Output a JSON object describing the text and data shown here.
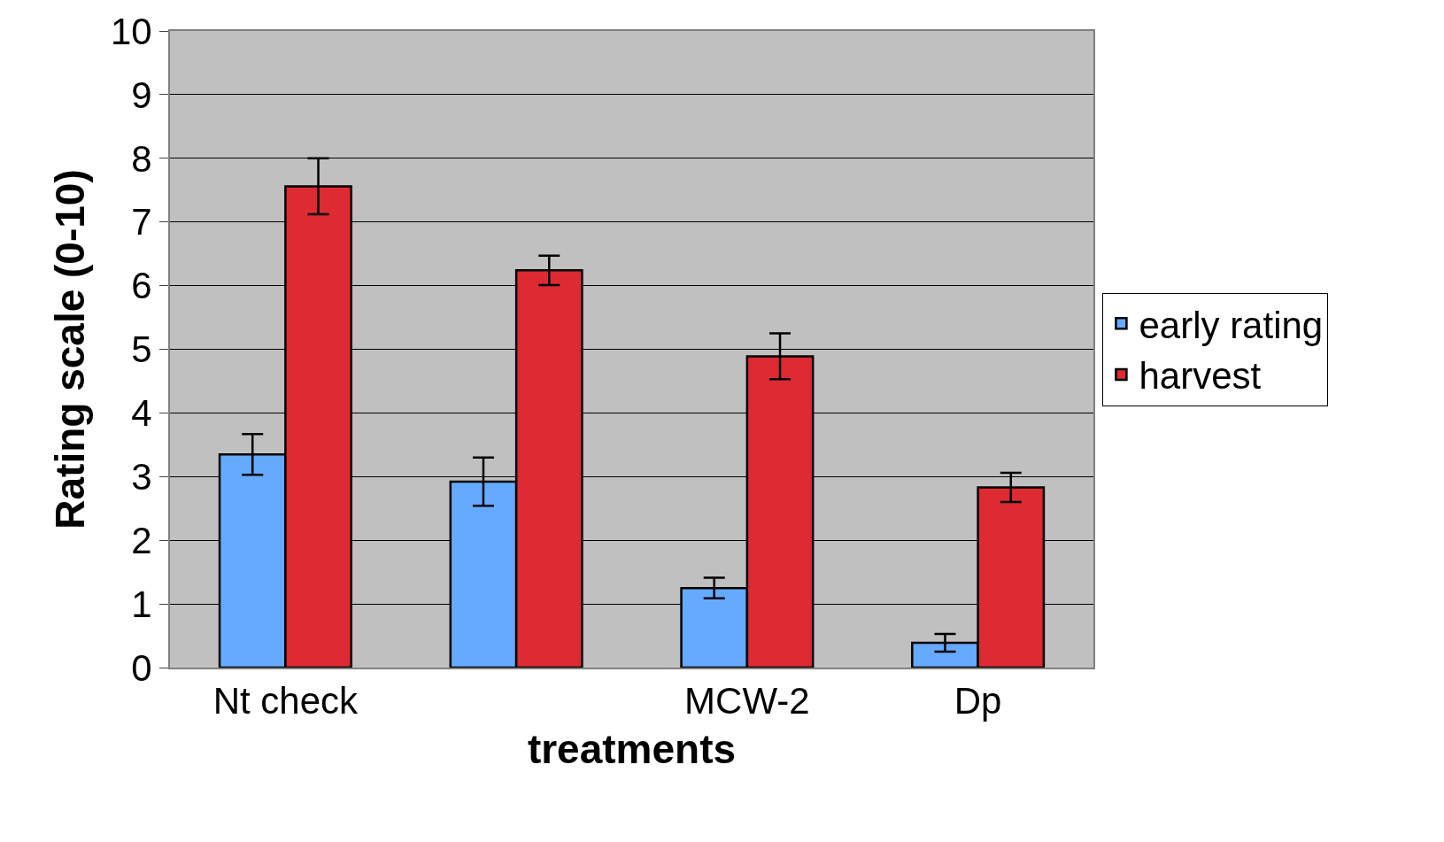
{
  "chart_data": {
    "type": "bar",
    "xlabel": "treatments",
    "ylabel": "Rating scale (0-10)",
    "categories": [
      "Nt check",
      null,
      "MCW-2",
      "Dp"
    ],
    "series": [
      {
        "name": "early rating",
        "color": "#66aaff",
        "values": [
          3.35,
          2.92,
          1.25,
          0.39
        ],
        "errors": [
          0.32,
          0.38,
          0.16,
          0.14
        ]
      },
      {
        "name": "harvest",
        "color": "#dd2a33",
        "values": [
          7.56,
          6.24,
          4.89,
          2.83
        ],
        "errors": [
          0.44,
          0.23,
          0.36,
          0.23
        ]
      }
    ],
    "ylim": [
      0,
      10
    ],
    "yticks": [
      0,
      1,
      2,
      3,
      4,
      5,
      6,
      7,
      8,
      9,
      10
    ],
    "grid": "y",
    "legend": "right"
  }
}
